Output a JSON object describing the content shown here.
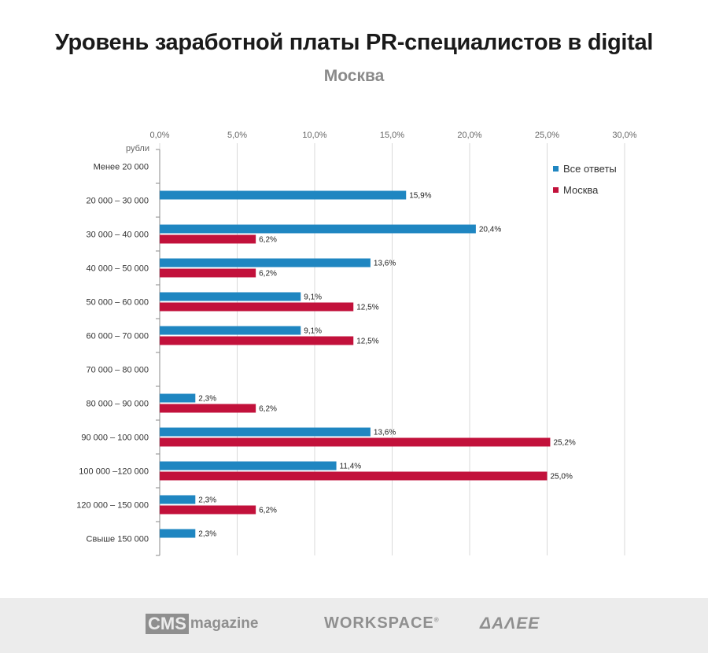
{
  "title": "Уровень заработной платы PR-специалистов в digital",
  "subtitle": "Москва",
  "colors": {
    "series_all": "#1f86c1",
    "series_moscow": "#c2113b",
    "grid": "#d9d9d9",
    "axis": "#8a8a8a",
    "text": "#333333"
  },
  "chart_data": {
    "type": "bar",
    "orientation": "horizontal",
    "unit_label": "рубли",
    "categories": [
      "Менее  20 000",
      "20 000 – 30 000",
      "30 000 – 40 000",
      "40 000 – 50 000",
      "50 000 – 60 000",
      "60 000 – 70 000",
      "70 000 – 80 000",
      "80 000 – 90 000",
      "90 000 – 100 000",
      "100 000 –120 000",
      "120 000 – 150 000",
      "Свыше 150 000"
    ],
    "series": [
      {
        "name": "Все ответы",
        "color": "#1f86c1",
        "values": [
          null,
          15.9,
          20.4,
          13.6,
          9.1,
          9.1,
          null,
          2.3,
          13.6,
          11.4,
          2.3,
          2.3
        ],
        "labels": [
          "",
          "15,9%",
          "20,4%",
          "13,6%",
          "9,1%",
          "9,1%",
          "",
          "2,3%",
          "13,6%",
          "11,4%",
          "2,3%",
          "2,3%"
        ]
      },
      {
        "name": "Москва",
        "color": "#c2113b",
        "values": [
          null,
          null,
          6.2,
          6.2,
          12.5,
          12.5,
          null,
          6.2,
          25.2,
          25.0,
          6.2,
          null
        ],
        "labels": [
          "",
          "",
          "6,2%",
          "6,2%",
          "12,5%",
          "12,5%",
          "",
          "6,2%",
          "25,2%",
          "25,0%",
          "6,2%",
          ""
        ]
      }
    ],
    "xlim": [
      0,
      30
    ],
    "ticks": [
      0,
      5,
      10,
      15,
      20,
      25,
      30
    ],
    "tick_labels": [
      "0,0%",
      "5,0%",
      "10,0%",
      "15,0%",
      "20,0%",
      "25,0%",
      "30,0%"
    ],
    "grid": true,
    "x_axis_position": "top",
    "legend_position": "top-right"
  },
  "footer": {
    "logo_cms_box": "CMS",
    "logo_cms_text": "magazine",
    "logo_workspace": "WORKSPACE",
    "logo_workspace_mark": "®",
    "logo_daleye": "ΔΑΛΕΕ"
  }
}
